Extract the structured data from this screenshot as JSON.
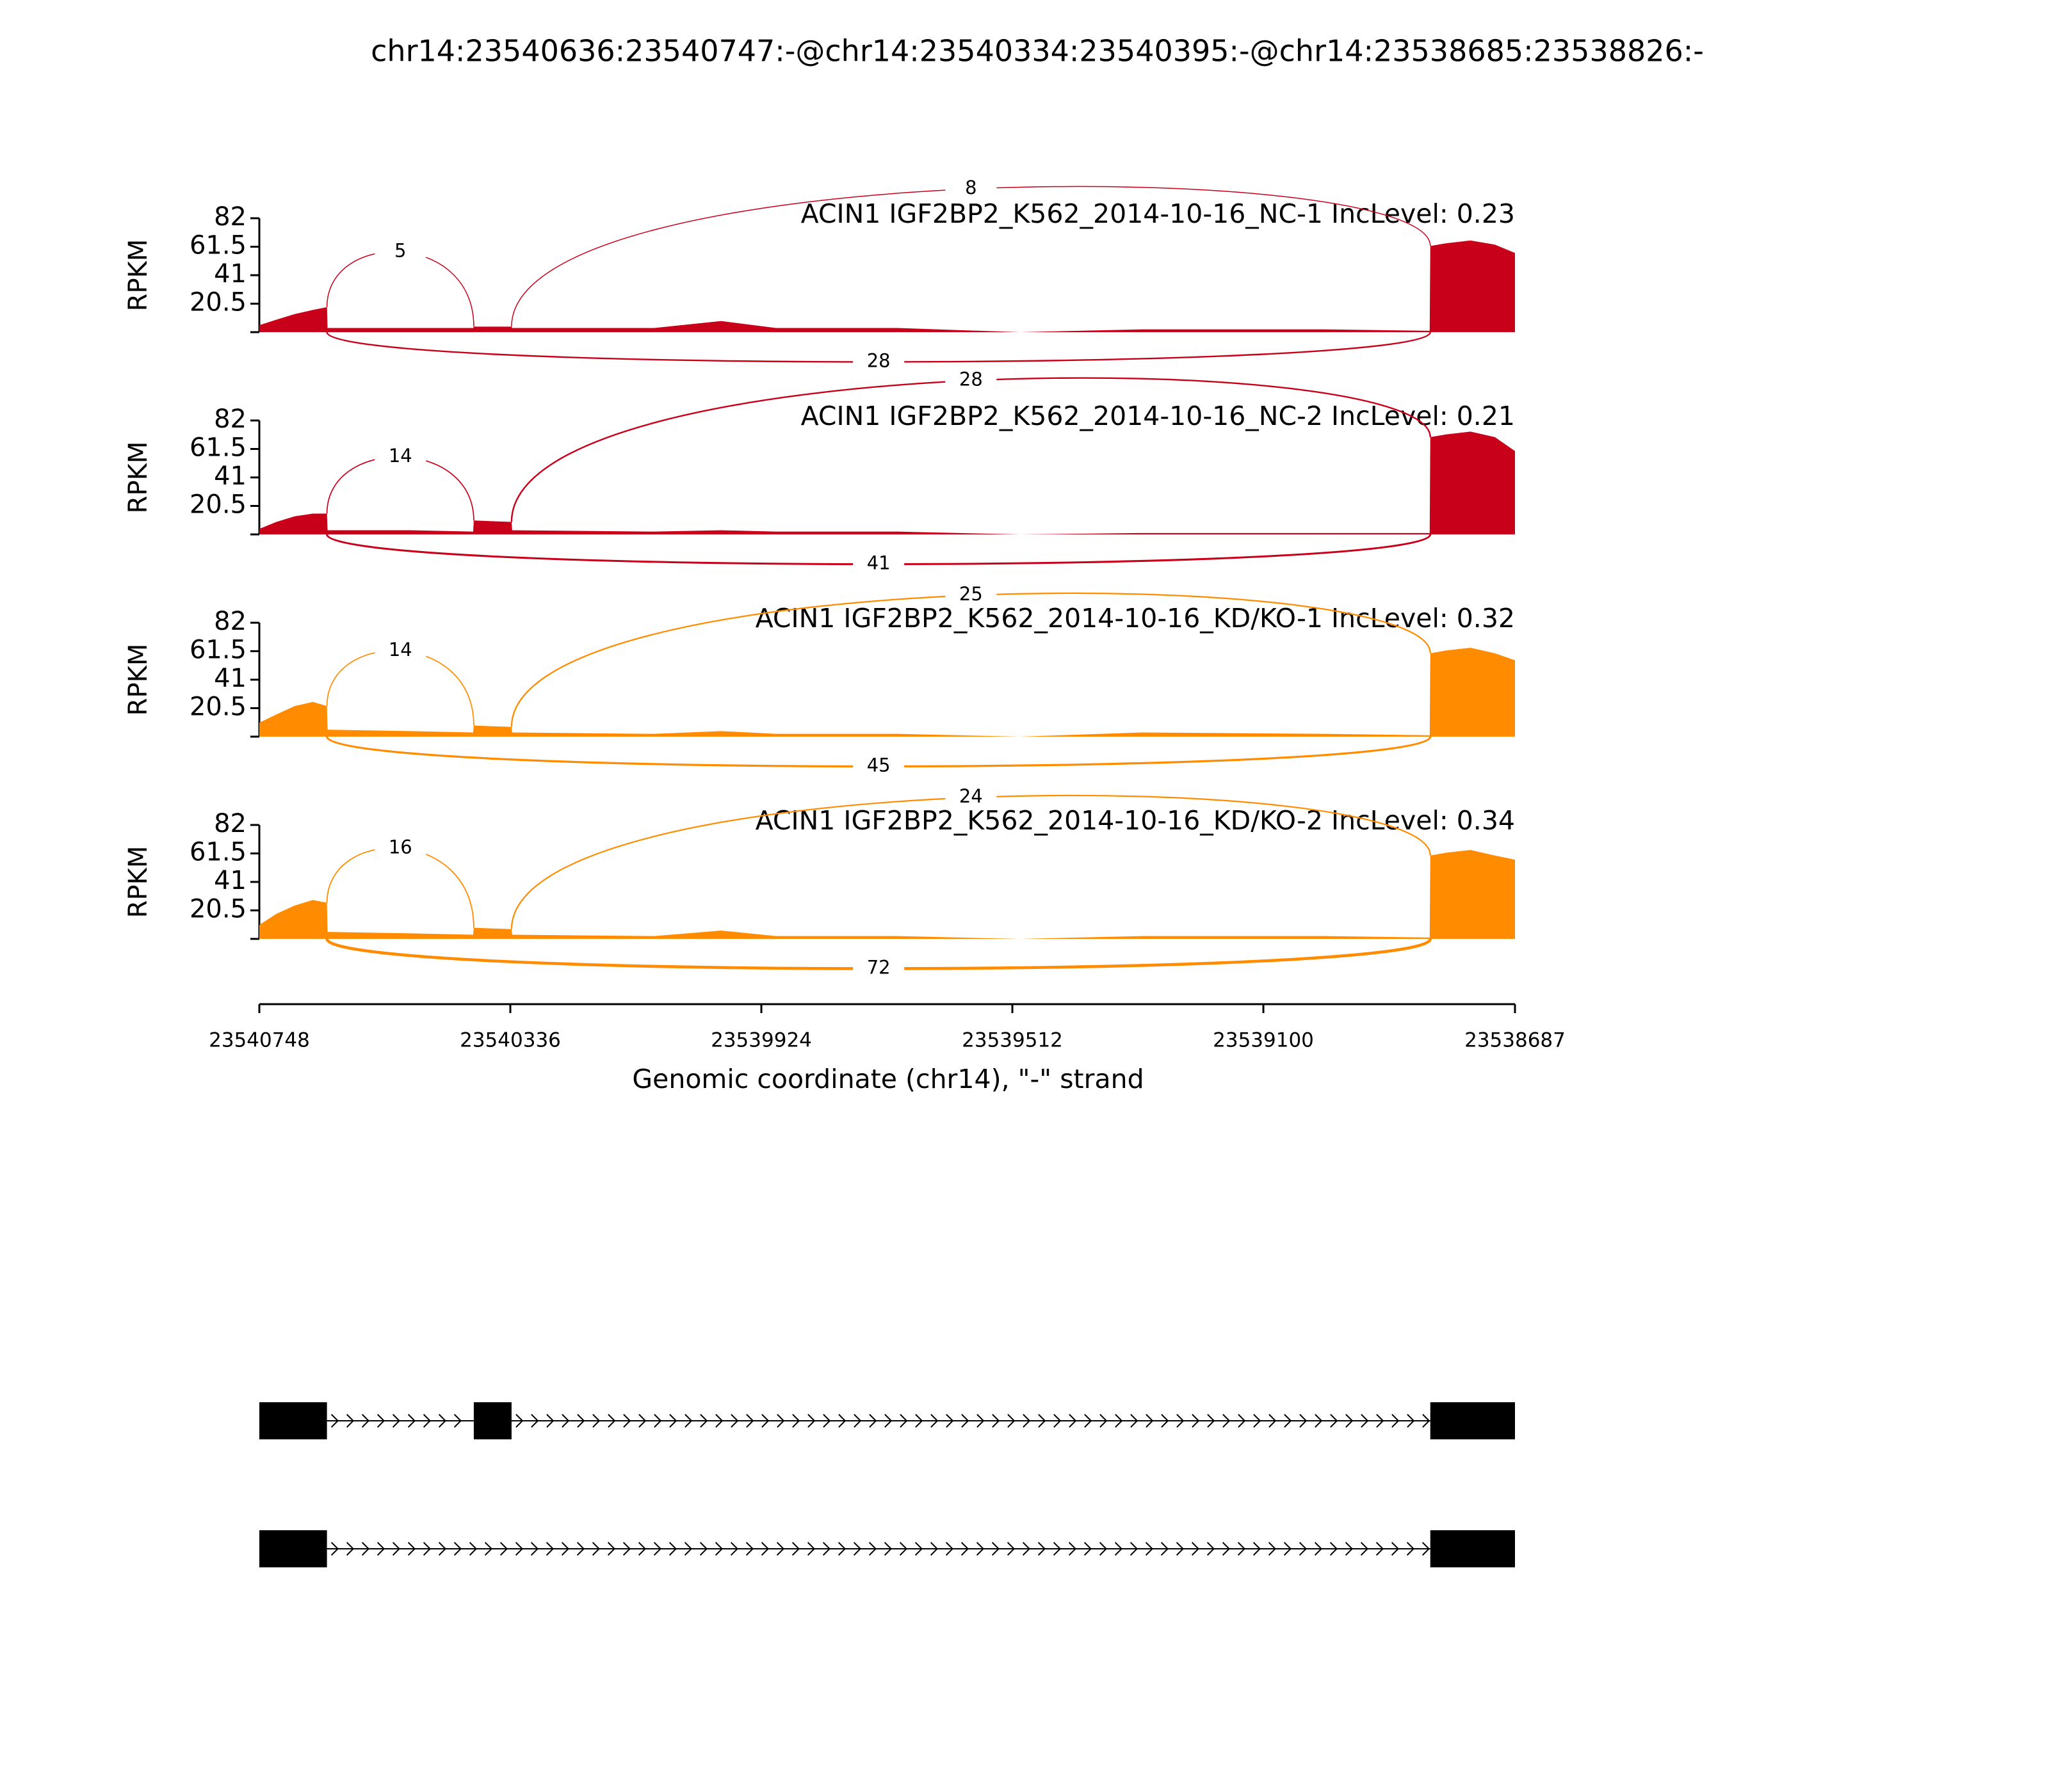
{
  "chart_data": {
    "type": "sashimi",
    "title": "chr14:23540636:23540747:-@chr14:23540334:23540395:-@chr14:23538685:23538826:-",
    "xlabel": "Genomic coordinate (chr14), \"-\" strand",
    "ylabel": "RPKM",
    "xlim": [
      23540748,
      23538687
    ],
    "xticks": [
      23540748,
      23540336,
      23539924,
      23539512,
      23539100,
      23538687
    ],
    "x": [
      23540748,
      23540720,
      23540690,
      23540660,
      23540637,
      23540636,
      23540500,
      23540397,
      23540396,
      23540334,
      23540333,
      23540100,
      23539990,
      23539900,
      23539700,
      23539500,
      23539300,
      23539000,
      23538827,
      23538826,
      23538800,
      23538760,
      23538720,
      23538687
    ],
    "junctions": [
      [
        23540637,
        23540396
      ],
      [
        23540334,
        23538826
      ],
      [
        23540637,
        23538826
      ]
    ],
    "panels": [
      {
        "label": "ACIN1 IGF2BP2_K562_2014-10-16_NC-1 IncLevel: 0.23",
        "color": "#c8001a",
        "ylim": [
          0,
          82
        ],
        "yticks": [
          20.5,
          41,
          61.5,
          82
        ],
        "values": [
          5,
          9,
          13,
          16,
          18,
          3,
          3,
          3,
          4,
          4,
          3,
          3,
          8,
          3,
          3,
          0,
          2,
          2,
          1,
          62,
          64,
          66,
          63,
          57
        ],
        "junction_counts": [
          5,
          8,
          28
        ]
      },
      {
        "label": "ACIN1 IGF2BP2_K562_2014-10-16_NC-2 IncLevel: 0.21",
        "color": "#c8001a",
        "ylim": [
          0,
          82
        ],
        "yticks": [
          20.5,
          41,
          61.5,
          82
        ],
        "values": [
          4,
          9,
          13,
          15,
          15,
          3,
          3,
          2,
          10,
          9,
          3,
          2,
          3,
          2,
          2,
          0,
          1,
          1,
          1,
          70,
          72,
          74,
          70,
          60
        ],
        "junction_counts": [
          14,
          28,
          41
        ]
      },
      {
        "label": "ACIN1 IGF2BP2_K562_2014-10-16_KD/KO-1 IncLevel: 0.32",
        "color": "#ff8c00",
        "ylim": [
          0,
          82
        ],
        "yticks": [
          20.5,
          41,
          61.5,
          82
        ],
        "values": [
          10,
          16,
          22,
          25,
          22,
          5,
          4,
          3,
          8,
          7,
          3,
          2,
          4,
          2,
          2,
          0,
          3,
          2,
          1,
          60,
          62,
          64,
          60,
          55
        ],
        "junction_counts": [
          14,
          25,
          45
        ]
      },
      {
        "label": "ACIN1 IGF2BP2_K562_2014-10-16_KD/KO-2 IncLevel: 0.34",
        "color": "#ff8c00",
        "ylim": [
          0,
          82
        ],
        "yticks": [
          20.5,
          41,
          61.5,
          82
        ],
        "values": [
          10,
          18,
          24,
          28,
          26,
          5,
          4,
          3,
          8,
          7,
          3,
          2,
          6,
          2,
          2,
          0,
          2,
          2,
          1,
          60,
          62,
          64,
          60,
          57
        ],
        "junction_counts": [
          16,
          24,
          72
        ]
      }
    ],
    "gene_models": [
      {
        "exons": [
          [
            23540748,
            23540637
          ],
          [
            23540396,
            23540334
          ],
          [
            23538826,
            23538687
          ]
        ]
      },
      {
        "exons": [
          [
            23540748,
            23540637
          ],
          [
            23538826,
            23538687
          ]
        ]
      }
    ]
  }
}
